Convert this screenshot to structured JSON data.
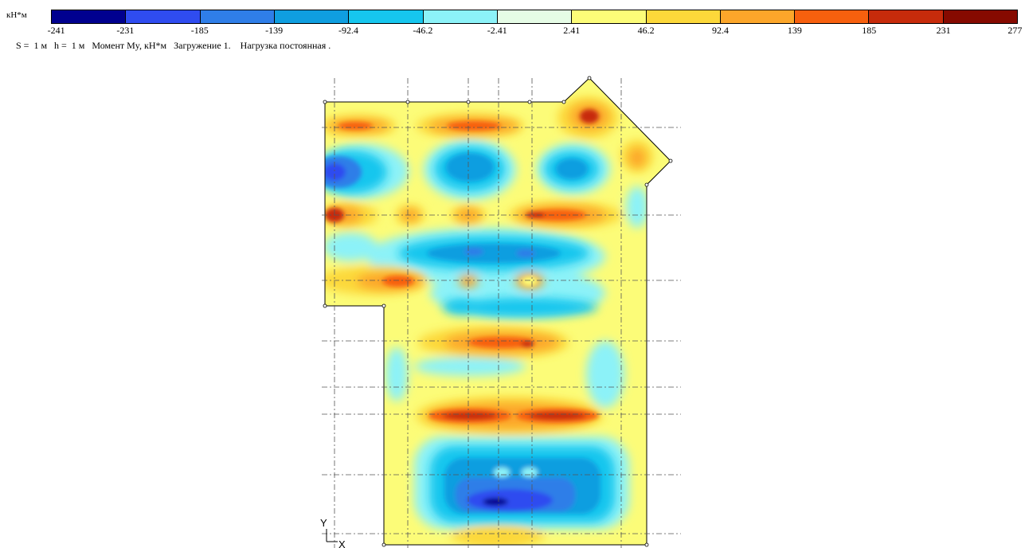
{
  "legend": {
    "unit": "кН*м",
    "colors": [
      "#00008f",
      "#2f4cf0",
      "#2f7ee8",
      "#0f9ee0",
      "#16c6ee",
      "#8cf2f8",
      "#e6fce6",
      "#fcfc78",
      "#fcd83a",
      "#fca62a",
      "#f7600e",
      "#c72b0b",
      "#860a00"
    ],
    "ticks": [
      "-241",
      "-231",
      "-185",
      "-139",
      "-92.4",
      "-46.2",
      "-2.41",
      "2.41",
      "46.2",
      "92.4",
      "139",
      "185",
      "231",
      "277"
    ]
  },
  "caption": "S =  1 м   h =  1 м   Момент My, кН*м   Загружение 1.    Нагрузка постоянная .",
  "axes": {
    "y": "Y",
    "x": "X"
  }
}
